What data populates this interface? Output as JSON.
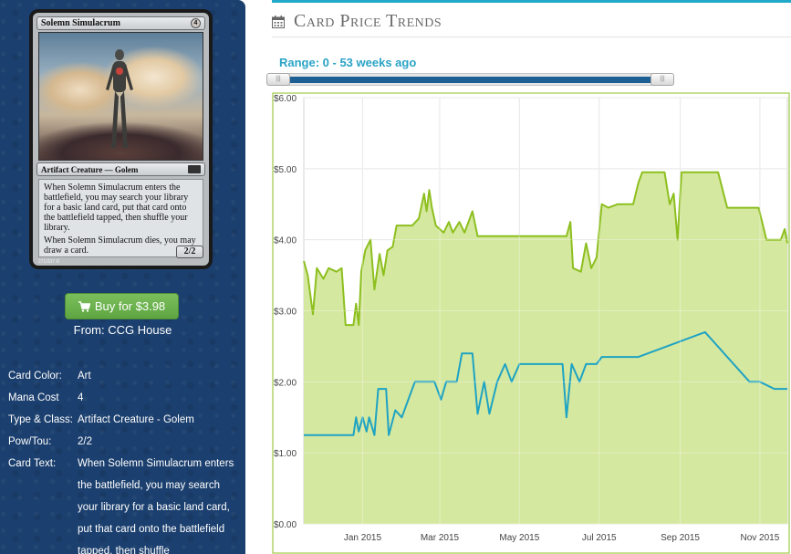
{
  "card": {
    "name": "Solemn Simulacrum",
    "mana_symbol": "4",
    "type_line": "Artifact Creature — Golem",
    "rules_text": [
      "When Solemn Simulacrum enters the battlefield, you may search your library for a basic land card, put that card onto the battlefield tapped, then shuffle your library.",
      "When Solemn Simulacrum dies, you may draw a card."
    ],
    "power_toughness": "2/2",
    "footer": "271/337 R"
  },
  "buy": {
    "label": "Buy for $3.98",
    "from": "From: CCG House"
  },
  "details": [
    {
      "label": "Card Color:",
      "value": "Art"
    },
    {
      "label": "Mana Cost",
      "value": "4"
    },
    {
      "label": "Type & Class:",
      "value": "Artifact Creature - Golem"
    },
    {
      "label": "Pow/Tou:",
      "value": "2/2"
    },
    {
      "label": "Card Text:",
      "value": "When Solemn Simulacrum enters the battlefield, you may search your library for a basic land card, put that card onto the battlefield tapped, then shuffle"
    }
  ],
  "section_title": "Card Price Trends",
  "range_label": "Range: 0 - 53 weeks ago",
  "slider": {
    "min_weeks": 0,
    "max_weeks": 53,
    "handle_glyph": "|||"
  },
  "colors": {
    "sidebar_bg": "#1b3f6e",
    "accent": "#20a9c9",
    "buy_green": "#6cb34c",
    "series_green": "#8dbf1f",
    "series_green_fill": "#d3e79b",
    "series_blue": "#1ea3c3",
    "slider_fill": "#1e5f93"
  },
  "icons": {
    "cart": "shopping-cart-icon",
    "calendar": "calendar-icon"
  },
  "chart_data": {
    "type": "line",
    "title": "",
    "xlabel": "",
    "ylabel": "",
    "ylim": [
      0,
      6
    ],
    "y_ticks": [
      "$0.00",
      "$1.00",
      "$2.00",
      "$3.00",
      "$4.00",
      "$5.00",
      "$6.00"
    ],
    "x_ticks": [
      "Jan 2015",
      "Mar 2015",
      "May 2015",
      "Jul 2015",
      "Sep 2015",
      "Nov 2015"
    ],
    "x_tick_positions": [
      "2015-01-01",
      "2015-03-01",
      "2015-05-01",
      "2015-07-01",
      "2015-09-01",
      "2015-11-01"
    ],
    "x_range": [
      "2014-11-17",
      "2015-11-22"
    ],
    "grid": true,
    "series": [
      {
        "color": "#8dbf1f",
        "filled": true,
        "points": [
          [
            "2014-11-17",
            3.7
          ],
          [
            "2014-11-20",
            3.5
          ],
          [
            "2014-11-24",
            2.95
          ],
          [
            "2014-11-27",
            3.6
          ],
          [
            "2014-12-02",
            3.45
          ],
          [
            "2014-12-06",
            3.6
          ],
          [
            "2014-12-12",
            3.55
          ],
          [
            "2014-12-16",
            3.6
          ],
          [
            "2014-12-19",
            2.8
          ],
          [
            "2014-12-25",
            2.8
          ],
          [
            "2014-12-27",
            3.1
          ],
          [
            "2014-12-29",
            2.8
          ],
          [
            "2014-12-31",
            3.55
          ],
          [
            "2015-01-03",
            3.85
          ],
          [
            "2015-01-07",
            4.0
          ],
          [
            "2015-01-10",
            3.3
          ],
          [
            "2015-01-14",
            3.8
          ],
          [
            "2015-01-17",
            3.5
          ],
          [
            "2015-01-20",
            3.85
          ],
          [
            "2015-01-24",
            3.9
          ],
          [
            "2015-01-27",
            4.2
          ],
          [
            "2015-02-08",
            4.2
          ],
          [
            "2015-02-13",
            4.3
          ],
          [
            "2015-02-17",
            4.65
          ],
          [
            "2015-02-19",
            4.4
          ],
          [
            "2015-02-21",
            4.7
          ],
          [
            "2015-02-23",
            4.45
          ],
          [
            "2015-02-26",
            4.2
          ],
          [
            "2015-03-04",
            4.1
          ],
          [
            "2015-03-08",
            4.25
          ],
          [
            "2015-03-11",
            4.1
          ],
          [
            "2015-03-16",
            4.25
          ],
          [
            "2015-03-20",
            4.1
          ],
          [
            "2015-03-26",
            4.4
          ],
          [
            "2015-03-30",
            4.05
          ],
          [
            "2015-04-10",
            4.05
          ],
          [
            "2015-05-10",
            4.05
          ],
          [
            "2015-06-06",
            4.05
          ],
          [
            "2015-06-09",
            4.25
          ],
          [
            "2015-06-11",
            3.6
          ],
          [
            "2015-06-17",
            3.55
          ],
          [
            "2015-06-21",
            3.95
          ],
          [
            "2015-06-25",
            3.6
          ],
          [
            "2015-06-29",
            3.75
          ],
          [
            "2015-07-03",
            4.5
          ],
          [
            "2015-07-08",
            4.45
          ],
          [
            "2015-07-15",
            4.5
          ],
          [
            "2015-07-27",
            4.5
          ],
          [
            "2015-07-31",
            4.8
          ],
          [
            "2015-08-03",
            4.95
          ],
          [
            "2015-08-20",
            4.95
          ],
          [
            "2015-08-24",
            4.5
          ],
          [
            "2015-08-27",
            4.65
          ],
          [
            "2015-08-30",
            4.0
          ],
          [
            "2015-09-02",
            4.95
          ],
          [
            "2015-09-30",
            4.95
          ],
          [
            "2015-10-07",
            4.45
          ],
          [
            "2015-10-31",
            4.45
          ],
          [
            "2015-11-06",
            4.0
          ],
          [
            "2015-11-17",
            4.0
          ],
          [
            "2015-11-20",
            4.15
          ],
          [
            "2015-11-22",
            3.95
          ]
        ]
      },
      {
        "color": "#1ea3c3",
        "filled": false,
        "points": [
          [
            "2014-11-17",
            1.25
          ],
          [
            "2014-12-25",
            1.25
          ],
          [
            "2014-12-27",
            1.5
          ],
          [
            "2014-12-29",
            1.3
          ],
          [
            "2015-01-01",
            1.5
          ],
          [
            "2015-01-04",
            1.3
          ],
          [
            "2015-01-06",
            1.5
          ],
          [
            "2015-01-10",
            1.25
          ],
          [
            "2015-01-13",
            1.9
          ],
          [
            "2015-01-19",
            1.9
          ],
          [
            "2015-01-21",
            1.25
          ],
          [
            "2015-01-26",
            1.6
          ],
          [
            "2015-01-31",
            1.5
          ],
          [
            "2015-02-06",
            1.8
          ],
          [
            "2015-02-10",
            2.0
          ],
          [
            "2015-02-25",
            2.0
          ],
          [
            "2015-03-02",
            1.75
          ],
          [
            "2015-03-06",
            2.0
          ],
          [
            "2015-03-14",
            2.0
          ],
          [
            "2015-03-18",
            2.4
          ],
          [
            "2015-03-26",
            2.4
          ],
          [
            "2015-03-30",
            1.55
          ],
          [
            "2015-04-04",
            2.0
          ],
          [
            "2015-04-08",
            1.55
          ],
          [
            "2015-04-14",
            2.0
          ],
          [
            "2015-04-20",
            2.25
          ],
          [
            "2015-04-25",
            2.0
          ],
          [
            "2015-05-01",
            2.25
          ],
          [
            "2015-06-03",
            2.25
          ],
          [
            "2015-06-06",
            1.5
          ],
          [
            "2015-06-10",
            2.25
          ],
          [
            "2015-06-16",
            2.0
          ],
          [
            "2015-06-21",
            2.25
          ],
          [
            "2015-06-29",
            2.25
          ],
          [
            "2015-07-03",
            2.35
          ],
          [
            "2015-07-31",
            2.35
          ],
          [
            "2015-09-20",
            2.7
          ],
          [
            "2015-10-24",
            2.0
          ],
          [
            "2015-11-01",
            2.0
          ],
          [
            "2015-11-12",
            1.9
          ],
          [
            "2015-11-22",
            1.9
          ]
        ]
      }
    ]
  }
}
